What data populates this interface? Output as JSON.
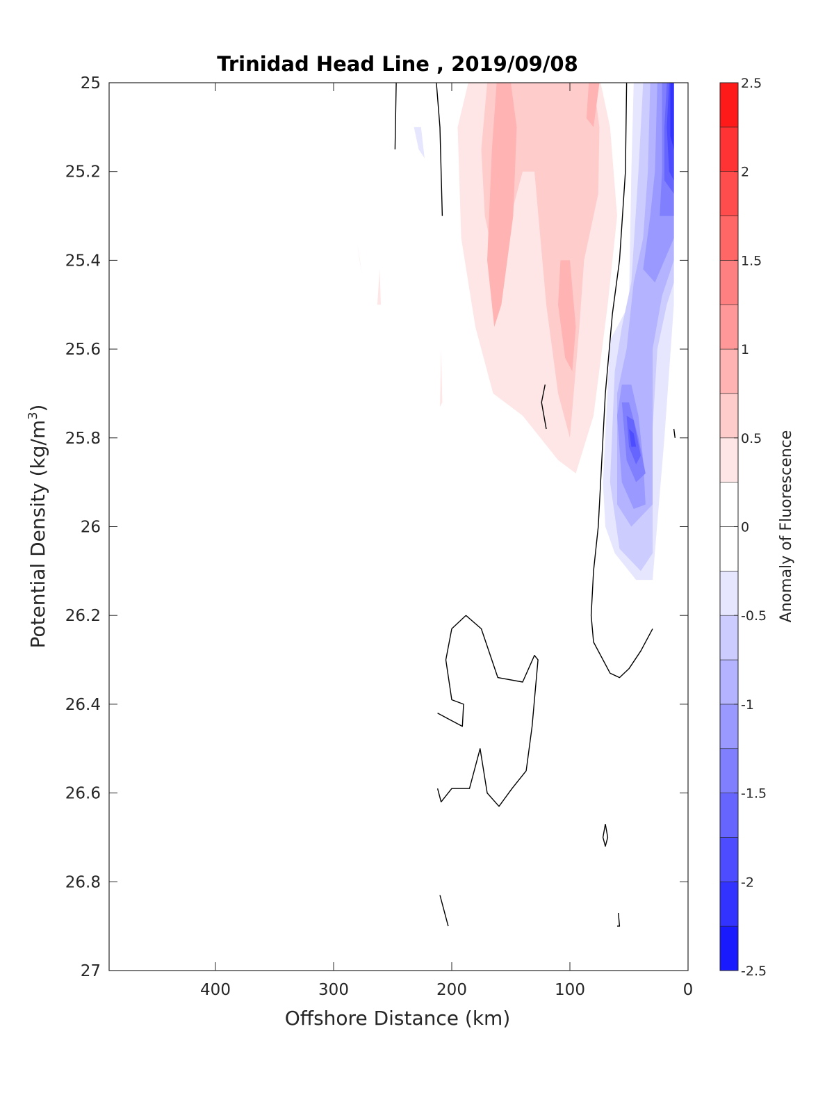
{
  "chart_data": {
    "type": "contour",
    "title": "Trinidad Head Line , 2019/09/08",
    "xlabel": "Offshore Distance (km)",
    "ylabel_main": "Potential Density (kg/m",
    "ylabel_sup": "3",
    "ylabel_tail": ")",
    "x_direction": "reversed",
    "xlim": [
      0,
      490
    ],
    "xticks": [
      "400",
      "300",
      "200",
      "100",
      "0"
    ],
    "xtick_values": [
      400,
      300,
      200,
      100,
      0
    ],
    "y_direction": "reversed",
    "ylim": [
      25,
      27
    ],
    "yticks": [
      "25",
      "25.2",
      "25.4",
      "25.6",
      "25.8",
      "26",
      "26.2",
      "26.4",
      "26.6",
      "26.8",
      "27"
    ],
    "ytick_values": [
      25,
      25.2,
      25.4,
      25.6,
      25.8,
      26,
      26.2,
      26.4,
      26.6,
      26.8,
      27
    ],
    "colorbar": {
      "label": "Anomaly of Fluorescence",
      "levels": [
        -2.5,
        -2.25,
        -2,
        -1.75,
        -1.5,
        -1.25,
        -1,
        -0.75,
        -0.5,
        -0.25,
        0,
        0.25,
        0.5,
        0.75,
        1,
        1.25,
        1.5,
        1.75,
        2,
        2.25,
        2.5
      ],
      "ticks": [
        "2.5",
        "2",
        "1.5",
        "1",
        "0.5",
        "0",
        "-0.5",
        "-1",
        "-1.5",
        "-2",
        "-2.5"
      ],
      "tick_values": [
        2.5,
        2,
        1.5,
        1,
        0.5,
        0,
        -0.5,
        -1,
        -1.5,
        -2,
        -2.5
      ],
      "colors_bottom_to_top": [
        "#0000ff",
        "#1a1aff",
        "#3333ff",
        "#4d4dff",
        "#6666ff",
        "#8080ff",
        "#9999ff",
        "#b3b3ff",
        "#ccccff",
        "#e6e6ff",
        "#ffffff",
        "#ffffff",
        "#ffe6e6",
        "#ffcccc",
        "#ffb3b3",
        "#ff9999",
        "#ff8080",
        "#ff6666",
        "#ff4d4d",
        "#ff3333",
        "#ff1a1a",
        "#ff0000"
      ]
    },
    "filled_regions": [
      {
        "level": 0.25,
        "color": "#ffe6e6",
        "points": [
          [
            186,
            25.0
          ],
          [
            74,
            25.0
          ],
          [
            66,
            25.1
          ],
          [
            60,
            25.3
          ],
          [
            68,
            25.5
          ],
          [
            80,
            25.75
          ],
          [
            95,
            25.88
          ],
          [
            110,
            25.85
          ],
          [
            140,
            25.75
          ],
          [
            165,
            25.7
          ],
          [
            180,
            25.55
          ],
          [
            192,
            25.35
          ],
          [
            195,
            25.1
          ]
        ]
      },
      {
        "level": 0.5,
        "color": "#ffcccc",
        "points": [
          [
            170,
            25.0
          ],
          [
            80,
            25.0
          ],
          [
            75,
            25.1
          ],
          [
            76,
            25.25
          ],
          [
            88,
            25.4
          ],
          [
            92,
            25.55
          ],
          [
            100,
            25.8
          ],
          [
            110,
            25.7
          ],
          [
            120,
            25.5
          ],
          [
            130,
            25.2
          ],
          [
            140,
            25.2
          ],
          [
            150,
            25.3
          ],
          [
            160,
            25.45
          ],
          [
            172,
            25.3
          ],
          [
            175,
            25.15
          ]
        ]
      },
      {
        "level": 0.75,
        "color": "#ffb3b3",
        "points": [
          [
            162,
            25.0
          ],
          [
            150,
            25.0
          ],
          [
            145,
            25.1
          ],
          [
            148,
            25.3
          ],
          [
            158,
            25.5
          ],
          [
            164,
            25.55
          ],
          [
            170,
            25.4
          ],
          [
            166,
            25.15
          ]
        ]
      },
      {
        "level": 0.75,
        "color": "#ffb3b3",
        "points": [
          [
            100,
            25.4
          ],
          [
            95,
            25.55
          ],
          [
            98,
            25.65
          ],
          [
            104,
            25.62
          ],
          [
            110,
            25.5
          ],
          [
            108,
            25.4
          ]
        ]
      },
      {
        "level": 0.75,
        "color": "#ffb3b3",
        "points": [
          [
            84,
            25.0
          ],
          [
            75,
            25.0
          ],
          [
            80,
            25.1
          ],
          [
            86,
            25.08
          ]
        ]
      },
      {
        "level": 0.25,
        "color": "#ffe6e6",
        "points": [
          [
            278,
            25.4
          ],
          [
            280,
            25.36
          ],
          [
            276,
            25.43
          ]
        ]
      },
      {
        "level": 0.25,
        "color": "#ffe6e6",
        "points": [
          [
            263,
            25.5
          ],
          [
            260,
            25.5
          ],
          [
            261,
            25.42
          ]
        ]
      },
      {
        "level": 0.25,
        "color": "#ffe6e6",
        "points": [
          [
            210,
            25.73
          ],
          [
            208,
            25.72
          ],
          [
            209,
            25.6
          ]
        ]
      },
      {
        "level": -0.25,
        "color": "#e6e6ff",
        "points": [
          [
            232,
            25.1
          ],
          [
            226,
            25.1
          ],
          [
            223,
            25.17
          ],
          [
            228,
            25.15
          ]
        ]
      },
      {
        "level": -0.25,
        "color": "#e6e6ff",
        "points": [
          [
            12,
            25.0
          ],
          [
            46,
            25.0
          ],
          [
            48,
            25.2
          ],
          [
            50,
            25.5
          ],
          [
            66,
            25.58
          ],
          [
            72,
            25.9
          ],
          [
            70,
            26.0
          ],
          [
            62,
            26.06
          ],
          [
            44,
            26.12
          ],
          [
            30,
            26.12
          ],
          [
            20,
            25.8
          ],
          [
            12,
            25.5
          ]
        ]
      },
      {
        "level": -0.5,
        "color": "#ccccff",
        "points": [
          [
            12,
            25.0
          ],
          [
            38,
            25.0
          ],
          [
            42,
            25.2
          ],
          [
            48,
            25.45
          ],
          [
            56,
            25.55
          ],
          [
            62,
            25.65
          ],
          [
            66,
            25.9
          ],
          [
            58,
            26.05
          ],
          [
            40,
            26.1
          ],
          [
            30,
            26.06
          ],
          [
            30,
            25.78
          ],
          [
            26,
            25.6
          ],
          [
            18,
            25.5
          ],
          [
            12,
            25.45
          ]
        ]
      },
      {
        "level": -0.75,
        "color": "#b3b3ff",
        "points": [
          [
            12,
            25.0
          ],
          [
            32,
            25.0
          ],
          [
            34,
            25.2
          ],
          [
            38,
            25.35
          ],
          [
            46,
            25.45
          ],
          [
            52,
            25.6
          ],
          [
            60,
            25.7
          ],
          [
            60,
            25.95
          ],
          [
            48,
            26.0
          ],
          [
            30,
            25.95
          ],
          [
            30,
            25.6
          ],
          [
            22,
            25.48
          ],
          [
            12,
            25.4
          ]
        ]
      },
      {
        "level": -1.0,
        "color": "#9999ff",
        "points": [
          [
            12,
            25.0
          ],
          [
            26,
            25.0
          ],
          [
            28,
            25.2
          ],
          [
            32,
            25.3
          ],
          [
            38,
            25.42
          ],
          [
            28,
            25.45
          ],
          [
            20,
            25.4
          ],
          [
            12,
            25.35
          ]
        ]
      },
      {
        "level": -1.0,
        "color": "#9999ff",
        "points": [
          [
            60,
            25.75
          ],
          [
            56,
            25.68
          ],
          [
            48,
            25.68
          ],
          [
            42,
            25.75
          ],
          [
            38,
            25.85
          ],
          [
            36,
            25.95
          ],
          [
            46,
            25.96
          ],
          [
            56,
            25.9
          ]
        ]
      },
      {
        "level": -1.25,
        "color": "#8080ff",
        "points": [
          [
            12,
            25.0
          ],
          [
            22,
            25.0
          ],
          [
            22,
            25.2
          ],
          [
            24,
            25.3
          ],
          [
            12,
            25.3
          ]
        ]
      },
      {
        "level": -1.25,
        "color": "#8080ff",
        "points": [
          [
            56,
            25.72
          ],
          [
            50,
            25.72
          ],
          [
            42,
            25.8
          ],
          [
            36,
            25.88
          ],
          [
            44,
            25.9
          ],
          [
            52,
            25.85
          ]
        ]
      },
      {
        "level": -1.5,
        "color": "#6666ff",
        "points": [
          [
            12,
            25.0
          ],
          [
            18,
            25.0
          ],
          [
            20,
            25.1
          ],
          [
            20,
            25.22
          ],
          [
            12,
            25.25
          ]
        ]
      },
      {
        "level": -1.5,
        "color": "#6666ff",
        "points": [
          [
            52,
            25.75
          ],
          [
            46,
            25.76
          ],
          [
            40,
            25.84
          ],
          [
            44,
            25.86
          ],
          [
            50,
            25.82
          ]
        ]
      },
      {
        "level": -1.75,
        "color": "#4d4dff",
        "points": [
          [
            12,
            25.0
          ],
          [
            16,
            25.0
          ],
          [
            18,
            25.1
          ],
          [
            16,
            25.2
          ],
          [
            12,
            25.22
          ]
        ]
      },
      {
        "level": -1.75,
        "color": "#4d4dff",
        "points": [
          [
            50,
            25.78
          ],
          [
            46,
            25.79
          ],
          [
            44,
            25.82
          ],
          [
            48,
            25.82
          ]
        ]
      },
      {
        "level": -2.0,
        "color": "#3333ff",
        "points": [
          [
            12,
            25.0
          ],
          [
            15,
            25.0
          ],
          [
            15,
            25.12
          ],
          [
            12,
            25.15
          ]
        ]
      }
    ],
    "zero_contours": [
      {
        "points": [
          [
            247,
            25.0
          ],
          [
            248,
            25.15
          ]
        ]
      },
      {
        "points": [
          [
            213,
            25.0
          ],
          [
            210,
            25.1
          ],
          [
            208,
            25.3
          ]
        ]
      },
      {
        "points": [
          [
            52,
            25.0
          ],
          [
            53,
            25.2
          ],
          [
            58,
            25.4
          ],
          [
            64,
            25.52
          ],
          [
            70,
            25.7
          ],
          [
            74,
            25.9
          ],
          [
            76,
            26.0
          ],
          [
            80,
            26.1
          ],
          [
            82,
            26.2
          ],
          [
            80,
            26.26
          ],
          [
            66,
            26.33
          ],
          [
            58,
            26.34
          ],
          [
            50,
            26.32
          ],
          [
            40,
            26.28
          ],
          [
            30,
            26.23
          ]
        ]
      },
      {
        "points": [
          [
            121,
            25.68
          ],
          [
            124,
            25.72
          ],
          [
            120,
            25.78
          ]
        ]
      },
      {
        "points": [
          [
            12,
            25.78
          ],
          [
            11,
            25.8
          ]
        ]
      },
      {
        "points": [
          [
            188,
            26.2
          ],
          [
            175,
            26.23
          ],
          [
            161,
            26.34
          ],
          [
            140,
            26.35
          ],
          [
            130,
            26.29
          ],
          [
            127,
            26.3
          ],
          [
            132,
            26.45
          ],
          [
            137,
            26.55
          ],
          [
            149,
            26.59
          ],
          [
            160,
            26.63
          ],
          [
            170,
            26.6
          ],
          [
            176,
            26.5
          ],
          [
            185,
            26.59
          ],
          [
            200,
            26.59
          ],
          [
            209,
            26.62
          ],
          [
            212,
            26.59
          ]
        ]
      },
      {
        "points": [
          [
            188,
            26.2
          ],
          [
            200,
            26.23
          ],
          [
            205,
            26.3
          ],
          [
            200,
            26.39
          ],
          [
            190,
            26.4
          ],
          [
            191,
            26.45
          ],
          [
            205,
            26.43
          ],
          [
            212,
            26.42
          ]
        ]
      },
      {
        "points": [
          [
            210,
            26.83
          ],
          [
            203,
            26.9
          ]
        ]
      },
      {
        "points": [
          [
            70,
            26.67
          ],
          [
            68,
            26.7
          ],
          [
            70,
            26.72
          ],
          [
            72,
            26.7
          ],
          [
            70,
            26.67
          ]
        ]
      },
      {
        "points": [
          [
            59,
            26.87
          ],
          [
            58,
            26.9
          ],
          [
            60,
            26.9
          ]
        ]
      }
    ]
  }
}
